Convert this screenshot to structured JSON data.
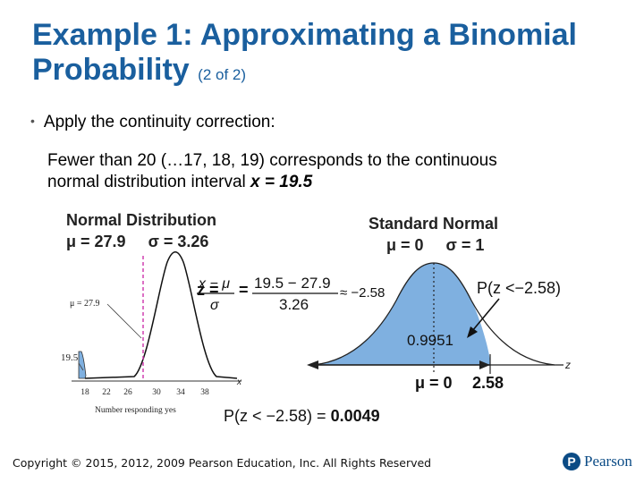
{
  "slide": {
    "title_main": "Example 1: Approximating a Binomial Probability",
    "title_sub": "(2 of 2)",
    "bullet": "Apply the continuity correction:",
    "body_line1": "Fewer than 20 (…17, 18, 19) corresponds to the continuous",
    "body_line2_prefix": "normal distribution interval ",
    "body_line2_emph": "x = 19.5",
    "copyright": "Copyright © 2015, 2012, 2009 Pearson Education, Inc. All Rights Reserved",
    "logo_text": "Pearson",
    "logo_letter": "P"
  },
  "figure": {
    "left_title": "Normal Distribution",
    "left_params": "μ = 27.9     σ = 3.26",
    "mu_marker": "μ = 27.9",
    "x_marker": "19.5",
    "axis_ticks": [
      "18",
      "22",
      "26",
      "30",
      "34",
      "38"
    ],
    "axis_var": "x",
    "axis_label": "Number responding yes",
    "z_lhs": "z =",
    "z_formula_num": "x − μ",
    "z_formula_den": "σ",
    "z_eq": "=",
    "z_value_num": "19.5 − 27.9",
    "z_value_den": "3.26",
    "z_approx": "≈ −2.58",
    "right_title": "Standard Normal",
    "right_params": "μ = 0     σ = 1",
    "prob_label": "P(z <−2.58)",
    "area_label": "0.9951",
    "right_axis_var": "z",
    "right_mu": "μ = 0",
    "right_tick": "2.58",
    "result_prefix": "P(z < −2.58) = ",
    "result_value": "0.0049"
  },
  "colors": {
    "title": "#1a5f9e",
    "shade": "#7fb0e0",
    "magenta": "#cc33aa"
  }
}
